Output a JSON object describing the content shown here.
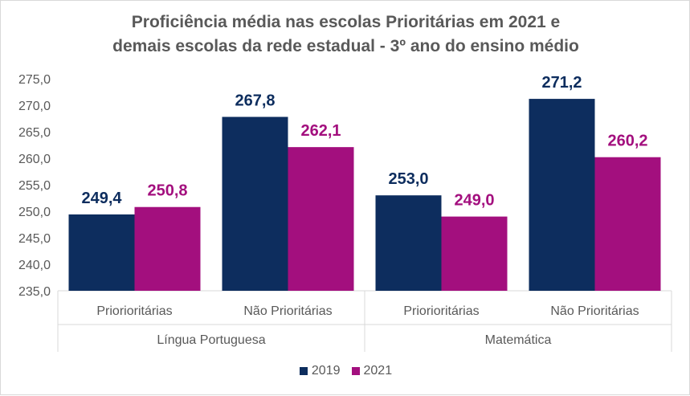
{
  "chart_data": {
    "type": "bar",
    "title_line1": "Proficiência média nas escolas Prioritárias em 2021 e",
    "title_line2": "demais escolas da rede estadual - 3º ano do ensino médio",
    "categories": [
      "Priorioritárias",
      "Não Prioritárias",
      "Priorioritárias",
      "Não Prioritárias"
    ],
    "groups": [
      "Língua Portuguesa",
      "Matemática"
    ],
    "series": [
      {
        "name": "2019",
        "color": "#0d2d5e",
        "values": [
          249.4,
          267.8,
          253.0,
          271.2
        ],
        "labels": [
          "249,4",
          "267,8",
          "253,0",
          "271,2"
        ]
      },
      {
        "name": "2021",
        "color": "#a30f7e",
        "values": [
          250.8,
          262.1,
          249.0,
          260.2
        ],
        "labels": [
          "250,8",
          "262,1",
          "249,0",
          "260,2"
        ]
      }
    ],
    "ylim": [
      235.0,
      275.0
    ],
    "yticks": [
      "275,0",
      "270,0",
      "265,0",
      "260,0",
      "255,0",
      "250,0",
      "245,0",
      "240,0",
      "235,0"
    ],
    "ytick_values": [
      275,
      270,
      265,
      260,
      255,
      250,
      245,
      240,
      235
    ],
    "grid": false,
    "legend_position": "bottom"
  }
}
